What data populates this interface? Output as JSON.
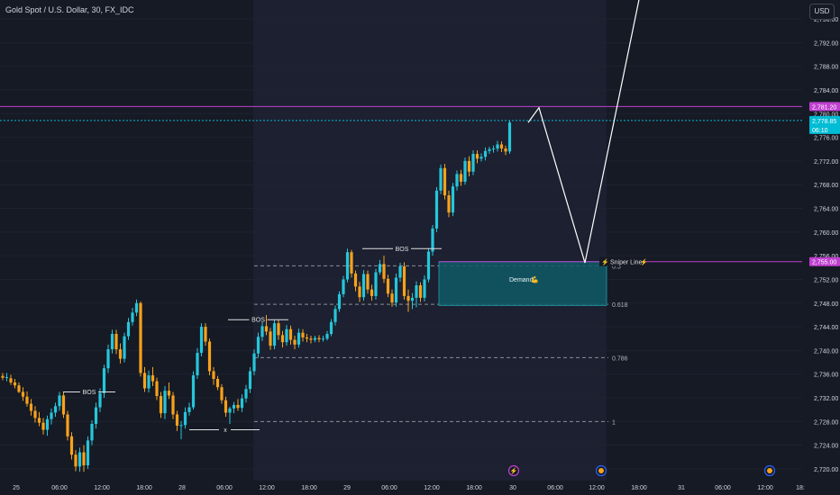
{
  "header": {
    "title": "Gold Spot / U.S. Dollar, 30, FX_IDC",
    "currency_button": "USD"
  },
  "colors": {
    "background": "#161a25",
    "up": "#26c6da",
    "down": "#f7a21b",
    "magenta": "#c040d0",
    "demand_zone": "#0f5a66",
    "axis_text": "#d1d4dc"
  },
  "chart_data": {
    "type": "candlestick",
    "symbol": "Gold Spot / U.S. Dollar",
    "interval": "30",
    "source": "FX_IDC",
    "currency": "USD",
    "y_ticks": [
      "2,796.00",
      "2,792.00",
      "2,788.00",
      "2,784.00",
      "2,780.00",
      "2,776.00",
      "2,772.00",
      "2,768.00",
      "2,764.00",
      "2,760.00",
      "2,756.00",
      "2,752.00",
      "2,748.00",
      "2,744.00",
      "2,740.00",
      "2,736.00",
      "2,732.00",
      "2,728.00",
      "2,724.00",
      "2,720.00"
    ],
    "y_range": [
      2719,
      2798
    ],
    "x_ticks": [
      "25",
      "06:00",
      "12:00",
      "18:00",
      "28",
      "06:00",
      "12:00",
      "18:00",
      "29",
      "06:00",
      "12:00",
      "18:00",
      "30",
      "06:00",
      "12:00",
      "18:00",
      "31",
      "06:00",
      "12:00",
      "18:"
    ],
    "price_labels": [
      {
        "text": "2,781.20",
        "price": 2781.2,
        "color": "#c040d0"
      },
      {
        "text": "2,778.85",
        "price": 2778.85,
        "color": "#00bcd4",
        "sub": "06:10"
      },
      {
        "text": "2,755.00",
        "price": 2755.0,
        "color": "#c040d0"
      }
    ],
    "horizontal_lines": [
      {
        "price": 2781.2,
        "color": "#c040d0"
      },
      {
        "price": 2778.85,
        "color": "#00bcd4"
      },
      {
        "price": 2755.0,
        "color": "#c040d0"
      }
    ],
    "fib_levels": [
      {
        "label": "0.5",
        "price": 2754.3
      },
      {
        "label": "0.618",
        "price": 2747.8
      },
      {
        "label": "0.786",
        "price": 2738.8
      },
      {
        "label": "1",
        "price": 2728.0
      }
    ],
    "annotations": [
      {
        "text": "BOS",
        "price": 2733.0
      },
      {
        "text": "BOS",
        "price": 2745.2
      },
      {
        "text": "BOS",
        "price": 2757.2
      },
      {
        "text": "x",
        "price": 2727.0
      },
      {
        "text": "Sniper Line",
        "price": 2755.0
      },
      {
        "text": "Demand",
        "price": 2752.0
      }
    ],
    "demand_zone": {
      "label": "Demand",
      "top": 2755.0,
      "bottom": 2747.6
    },
    "projection_path": [
      2778.5,
      2781.0,
      2754.8,
      2800.0
    ],
    "candles": [
      [
        2735.7,
        2736.2,
        2735.0,
        2735.4
      ],
      [
        2735.4,
        2736.2,
        2734.8,
        2735.5
      ],
      [
        2735.3,
        2735.9,
        2734.2,
        2734.6
      ],
      [
        2734.6,
        2735.2,
        2733.6,
        2734.1
      ],
      [
        2734.1,
        2734.6,
        2732.8,
        2733.0
      ],
      [
        2733.0,
        2733.8,
        2731.5,
        2732.2
      ],
      [
        2732.2,
        2733.1,
        2730.5,
        2731.0
      ],
      [
        2731.0,
        2731.8,
        2729.0,
        2729.8
      ],
      [
        2729.8,
        2730.6,
        2727.8,
        2728.6
      ],
      [
        2728.6,
        2729.6,
        2727.2,
        2727.8
      ],
      [
        2727.8,
        2728.6,
        2725.8,
        2726.6
      ],
      [
        2726.6,
        2729.0,
        2725.6,
        2728.4
      ],
      [
        2728.4,
        2730.2,
        2727.5,
        2729.5
      ],
      [
        2729.5,
        2731.2,
        2728.8,
        2730.6
      ],
      [
        2730.6,
        2733.0,
        2729.8,
        2732.4
      ],
      [
        2732.4,
        2732.9,
        2728.6,
        2729.2
      ],
      [
        2729.2,
        2729.8,
        2724.8,
        2725.5
      ],
      [
        2725.5,
        2726.2,
        2721.6,
        2722.4
      ],
      [
        2722.4,
        2723.2,
        2719.6,
        2720.4
      ],
      [
        2720.4,
        2723.6,
        2719.5,
        2722.8
      ],
      [
        2722.8,
        2724.0,
        2719.5,
        2720.6
      ],
      [
        2720.6,
        2725.5,
        2720.0,
        2724.8
      ],
      [
        2724.8,
        2728.2,
        2724.0,
        2727.6
      ],
      [
        2727.6,
        2731.2,
        2726.8,
        2730.4
      ],
      [
        2730.4,
        2733.6,
        2729.6,
        2732.8
      ],
      [
        2732.8,
        2737.6,
        2732.0,
        2737.0
      ],
      [
        2737.0,
        2741.0,
        2736.2,
        2740.2
      ],
      [
        2740.2,
        2743.5,
        2739.5,
        2742.8
      ],
      [
        2742.8,
        2743.5,
        2739.4,
        2740.2
      ],
      [
        2740.2,
        2741.2,
        2737.8,
        2738.6
      ],
      [
        2738.6,
        2743.0,
        2738.0,
        2742.4
      ],
      [
        2742.4,
        2745.5,
        2741.8,
        2744.8
      ],
      [
        2744.8,
        2747.2,
        2744.2,
        2746.4
      ],
      [
        2746.4,
        2748.6,
        2745.8,
        2748.0
      ],
      [
        2748.0,
        2748.3,
        2735.6,
        2736.2
      ],
      [
        2736.2,
        2737.2,
        2733.0,
        2733.6
      ],
      [
        2733.6,
        2736.6,
        2732.9,
        2735.8
      ],
      [
        2735.8,
        2737.2,
        2734.0,
        2734.8
      ],
      [
        2734.8,
        2735.4,
        2731.6,
        2732.3
      ],
      [
        2732.3,
        2733.0,
        2728.6,
        2729.4
      ],
      [
        2729.4,
        2734.0,
        2728.4,
        2733.2
      ],
      [
        2733.2,
        2734.6,
        2731.8,
        2732.4
      ],
      [
        2732.4,
        2733.0,
        2728.4,
        2729.2
      ],
      [
        2729.2,
        2729.8,
        2726.4,
        2727.3
      ],
      [
        2727.3,
        2728.1,
        2725.0,
        2727.4
      ],
      [
        2727.4,
        2730.4,
        2726.8,
        2729.6
      ],
      [
        2729.6,
        2731.2,
        2729.0,
        2730.4
      ],
      [
        2730.4,
        2736.5,
        2730.0,
        2735.8
      ],
      [
        2735.8,
        2740.4,
        2735.2,
        2739.6
      ],
      [
        2739.6,
        2744.6,
        2739.0,
        2744.0
      ],
      [
        2744.0,
        2744.6,
        2740.8,
        2741.5
      ],
      [
        2741.5,
        2742.0,
        2735.8,
        2736.5
      ],
      [
        2736.5,
        2737.2,
        2734.2,
        2735.2
      ],
      [
        2735.2,
        2735.7,
        2733.3,
        2733.8
      ],
      [
        2733.8,
        2734.3,
        2731.0,
        2731.6
      ],
      [
        2731.6,
        2732.2,
        2728.8,
        2729.5
      ],
      [
        2729.5,
        2730.5,
        2727.6,
        2730.2
      ],
      [
        2730.2,
        2731.3,
        2729.4,
        2730.8
      ],
      [
        2730.8,
        2731.8,
        2729.8,
        2730.3
      ],
      [
        2730.3,
        2732.6,
        2729.6,
        2731.9
      ],
      [
        2731.9,
        2734.2,
        2731.2,
        2733.5
      ],
      [
        2733.5,
        2737.2,
        2732.8,
        2736.5
      ],
      [
        2736.5,
        2740.2,
        2735.8,
        2739.5
      ],
      [
        2739.5,
        2743.0,
        2738.8,
        2742.3
      ],
      [
        2742.3,
        2744.8,
        2741.6,
        2744.1
      ],
      [
        2744.1,
        2746.0,
        2742.6,
        2743.2
      ],
      [
        2743.2,
        2743.8,
        2740.1,
        2740.8
      ],
      [
        2740.8,
        2745.2,
        2740.2,
        2744.6
      ],
      [
        2744.6,
        2745.2,
        2741.8,
        2742.6
      ],
      [
        2742.6,
        2743.3,
        2740.5,
        2741.4
      ],
      [
        2741.4,
        2744.3,
        2740.8,
        2743.6
      ],
      [
        2743.6,
        2744.2,
        2741.0,
        2741.8
      ],
      [
        2741.8,
        2742.5,
        2740.2,
        2741.0
      ],
      [
        2741.0,
        2743.7,
        2740.5,
        2743.0
      ],
      [
        2743.0,
        2743.6,
        2741.5,
        2742.2
      ],
      [
        2742.2,
        2742.8,
        2741.4,
        2742.0
      ],
      [
        2742.0,
        2742.5,
        2741.2,
        2741.8
      ],
      [
        2741.8,
        2742.5,
        2741.4,
        2742.1
      ],
      [
        2742.1,
        2742.6,
        2741.4,
        2741.9
      ],
      [
        2741.9,
        2742.5,
        2741.5,
        2742.0
      ],
      [
        2742.0,
        2743.3,
        2741.7,
        2742.8
      ],
      [
        2742.8,
        2745.3,
        2742.4,
        2744.8
      ],
      [
        2744.8,
        2747.6,
        2744.2,
        2747.0
      ],
      [
        2747.0,
        2750.0,
        2746.5,
        2749.5
      ],
      [
        2749.5,
        2752.6,
        2749.0,
        2752.0
      ],
      [
        2752.0,
        2757.2,
        2751.5,
        2756.6
      ],
      [
        2756.6,
        2757.0,
        2752.3,
        2753.0
      ],
      [
        2753.0,
        2753.5,
        2750.0,
        2750.8
      ],
      [
        2750.8,
        2751.6,
        2748.2,
        2749.0
      ],
      [
        2749.0,
        2753.6,
        2748.4,
        2752.9
      ],
      [
        2752.9,
        2753.5,
        2749.6,
        2750.3
      ],
      [
        2750.3,
        2751.1,
        2748.4,
        2749.2
      ],
      [
        2749.2,
        2753.8,
        2748.6,
        2753.2
      ],
      [
        2753.2,
        2755.3,
        2752.8,
        2754.6
      ],
      [
        2754.6,
        2756.0,
        2751.4,
        2752.1
      ],
      [
        2752.1,
        2752.8,
        2749.0,
        2749.6
      ],
      [
        2749.6,
        2750.3,
        2747.4,
        2748.1
      ],
      [
        2748.1,
        2753.0,
        2747.4,
        2752.3
      ],
      [
        2752.3,
        2754.8,
        2751.6,
        2754.2
      ],
      [
        2754.2,
        2754.9,
        2748.6,
        2749.2
      ],
      [
        2749.2,
        2750.3,
        2746.5,
        2748.4
      ],
      [
        2748.4,
        2749.7,
        2747.0,
        2748.9
      ],
      [
        2748.9,
        2751.7,
        2747.3,
        2751.0
      ],
      [
        2751.0,
        2751.5,
        2748.2,
        2748.9
      ],
      [
        2748.9,
        2752.7,
        2748.3,
        2752.0
      ],
      [
        2752.0,
        2757.3,
        2751.5,
        2756.7
      ],
      [
        2756.7,
        2761.2,
        2756.0,
        2760.6
      ],
      [
        2760.6,
        2767.6,
        2760.0,
        2767.0
      ],
      [
        2767.0,
        2771.4,
        2766.4,
        2770.8
      ],
      [
        2770.8,
        2771.5,
        2765.5,
        2766.2
      ],
      [
        2766.2,
        2767.0,
        2762.5,
        2763.3
      ],
      [
        2763.3,
        2768.3,
        2762.7,
        2767.7
      ],
      [
        2767.7,
        2770.4,
        2767.0,
        2769.8
      ],
      [
        2769.8,
        2770.5,
        2767.8,
        2768.5
      ],
      [
        2768.5,
        2772.6,
        2768.0,
        2772.0
      ],
      [
        2772.0,
        2772.8,
        2769.4,
        2770.2
      ],
      [
        2770.2,
        2773.8,
        2769.6,
        2773.2
      ],
      [
        2773.2,
        2773.8,
        2771.6,
        2772.4
      ],
      [
        2772.4,
        2773.3,
        2771.9,
        2772.7
      ],
      [
        2772.7,
        2774.3,
        2772.1,
        2773.7
      ],
      [
        2773.7,
        2774.4,
        2773.2,
        2774.0
      ],
      [
        2774.0,
        2774.6,
        2773.4,
        2774.1
      ],
      [
        2774.1,
        2775.4,
        2773.6,
        2774.8
      ],
      [
        2774.8,
        2775.3,
        2773.5,
        2774.1
      ],
      [
        2774.1,
        2774.6,
        2773.0,
        2773.6
      ],
      [
        2773.6,
        2778.9,
        2773.2,
        2778.5
      ]
    ]
  }
}
